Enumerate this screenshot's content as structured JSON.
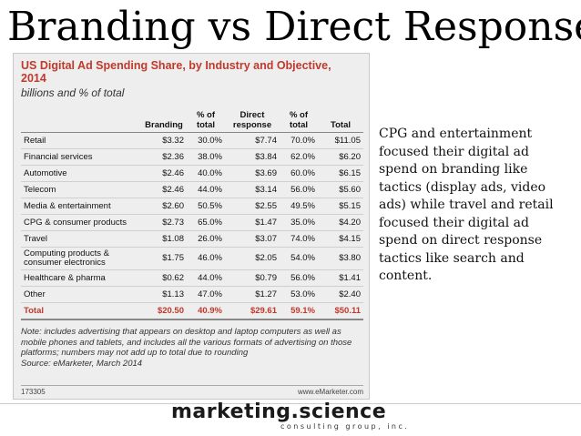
{
  "slide": {
    "title": "Branding vs Direct Response",
    "side_text": "CPG and entertainment focused their digital ad spend on branding like tactics (display ads, video ads) while travel and retail focused their digital ad spend on direct response tactics like search and content."
  },
  "figure": {
    "title": "US Digital Ad Spending Share, by Industry and Objective, 2014",
    "subtitle": "billions and % of total",
    "columns": [
      "",
      "Branding",
      "% of total",
      "Direct response",
      "% of total",
      "Total"
    ],
    "rows": [
      {
        "label": "Retail",
        "branding": "$3.32",
        "branding_pct": "30.0%",
        "direct": "$7.74",
        "direct_pct": "70.0%",
        "total": "$11.05"
      },
      {
        "label": "Financial services",
        "branding": "$2.36",
        "branding_pct": "38.0%",
        "direct": "$3.84",
        "direct_pct": "62.0%",
        "total": "$6.20"
      },
      {
        "label": "Automotive",
        "branding": "$2.46",
        "branding_pct": "40.0%",
        "direct": "$3.69",
        "direct_pct": "60.0%",
        "total": "$6.15"
      },
      {
        "label": "Telecom",
        "branding": "$2.46",
        "branding_pct": "44.0%",
        "direct": "$3.14",
        "direct_pct": "56.0%",
        "total": "$5.60"
      },
      {
        "label": "Media & entertainment",
        "branding": "$2.60",
        "branding_pct": "50.5%",
        "direct": "$2.55",
        "direct_pct": "49.5%",
        "total": "$5.15"
      },
      {
        "label": "CPG & consumer products",
        "branding": "$2.73",
        "branding_pct": "65.0%",
        "direct": "$1.47",
        "direct_pct": "35.0%",
        "total": "$4.20"
      },
      {
        "label": "Travel",
        "branding": "$1.08",
        "branding_pct": "26.0%",
        "direct": "$3.07",
        "direct_pct": "74.0%",
        "total": "$4.15"
      },
      {
        "label": "Computing products & consumer electronics",
        "branding": "$1.75",
        "branding_pct": "46.0%",
        "direct": "$2.05",
        "direct_pct": "54.0%",
        "total": "$3.80"
      },
      {
        "label": "Healthcare & pharma",
        "branding": "$0.62",
        "branding_pct": "44.0%",
        "direct": "$0.79",
        "direct_pct": "56.0%",
        "total": "$1.41"
      },
      {
        "label": "Other",
        "branding": "$1.13",
        "branding_pct": "47.0%",
        "direct": "$1.27",
        "direct_pct": "53.0%",
        "total": "$2.40"
      }
    ],
    "total_row": {
      "label": "Total",
      "branding": "$20.50",
      "branding_pct": "40.9%",
      "direct": "$29.61",
      "direct_pct": "59.1%",
      "total": "$50.11"
    },
    "note": "Note: includes advertising that appears on desktop and laptop computers as well as mobile phones and tablets, and includes all the various formats of advertising on those platforms; numbers may not add up to total due to rounding",
    "source": "Source: eMarketer, March 2014",
    "footer_id": "173305",
    "footer_site": "www.eMarketer.com"
  },
  "brand": {
    "name": "marketing.science",
    "tagline": "consulting group, inc."
  },
  "colors": {
    "accent_red": "#c0392b",
    "figure_bg": "#eeeeee"
  }
}
